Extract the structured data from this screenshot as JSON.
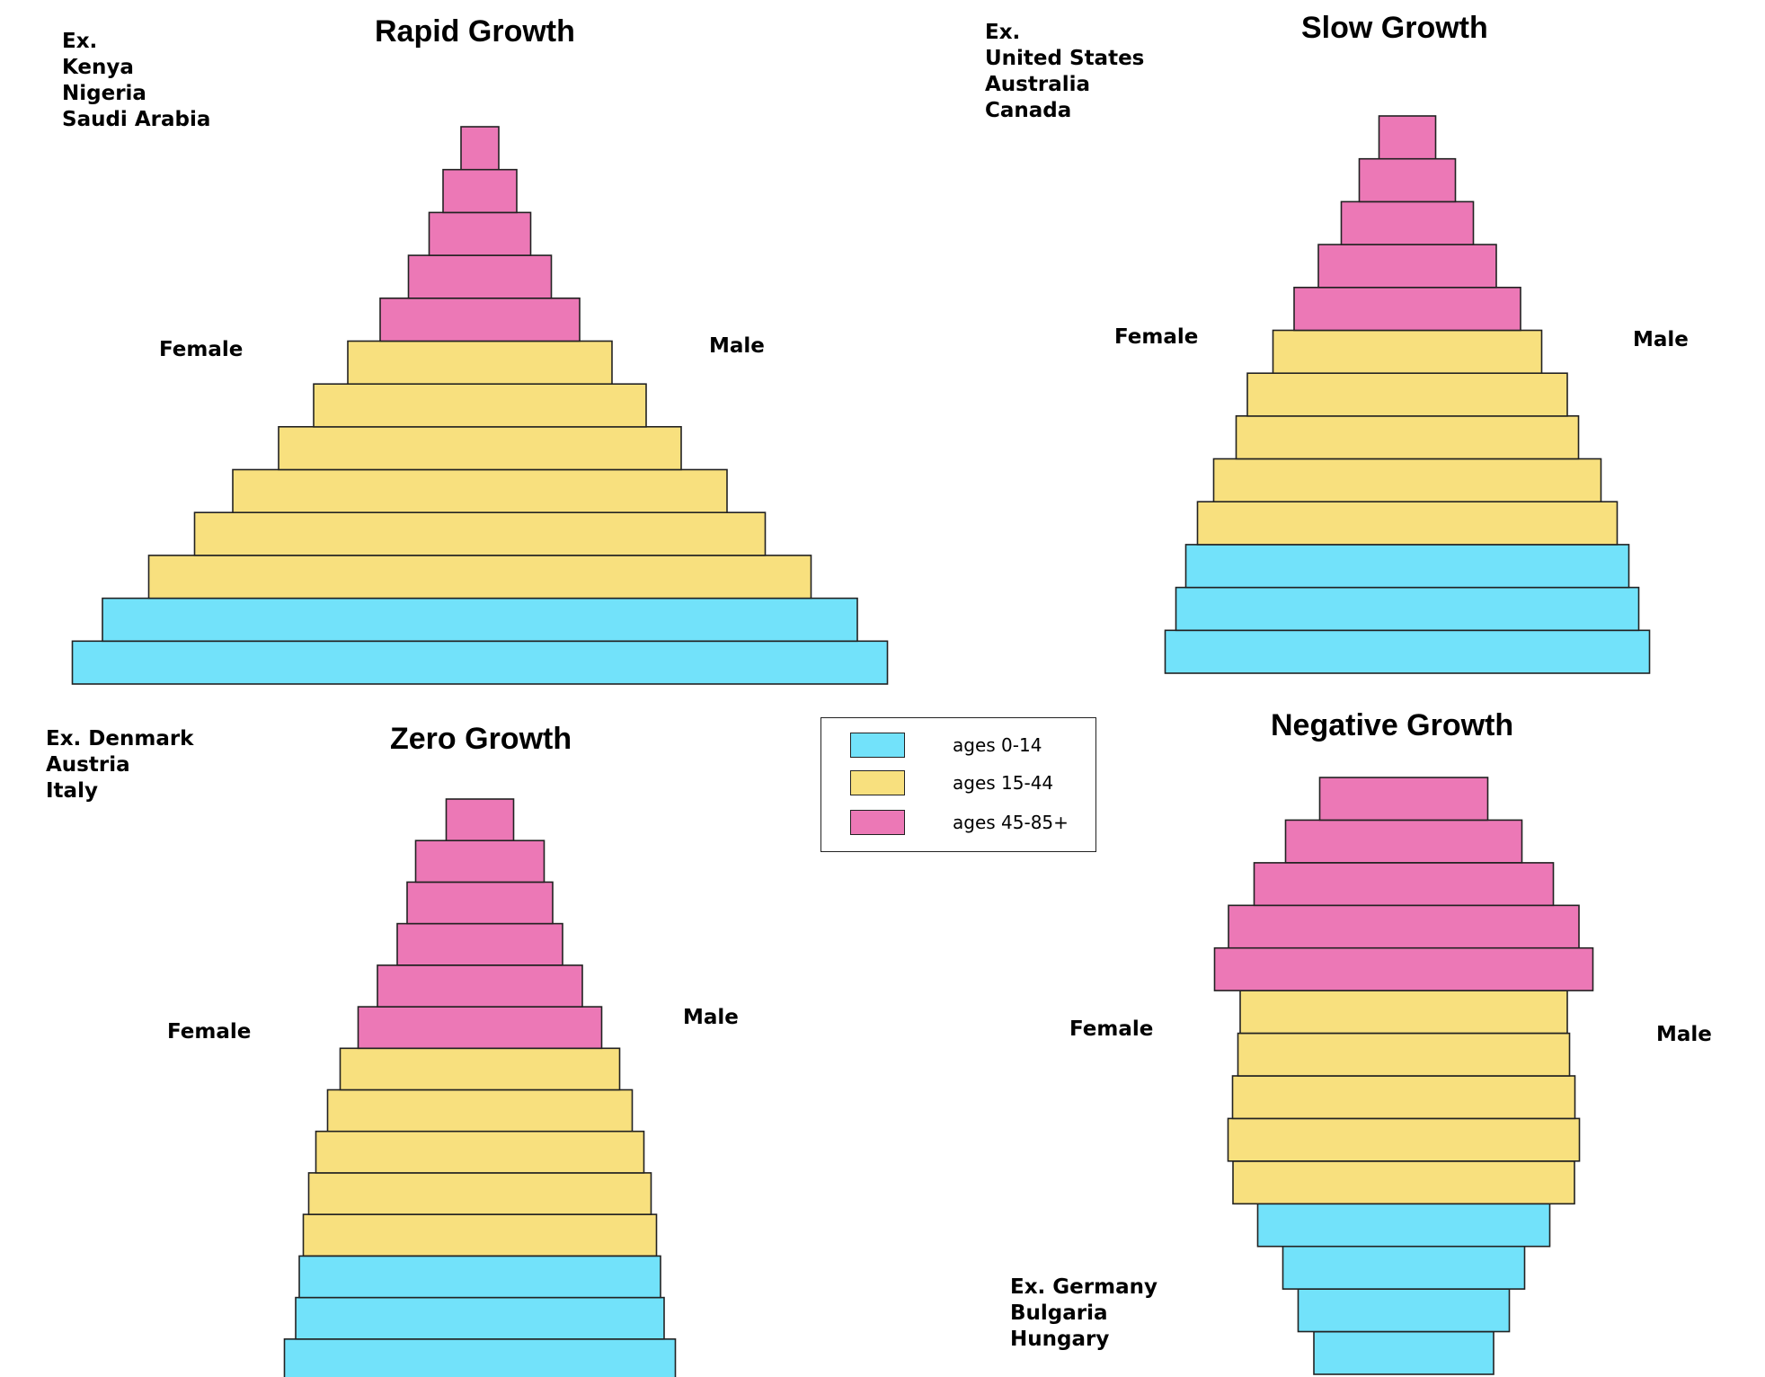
{
  "colors": {
    "ages_0_14": "#72e2fa",
    "ages_15_44": "#f8e07e",
    "ages_45_85": "#ec78b6",
    "outline": "#222222"
  },
  "legend": [
    {
      "label": "ages 0-14",
      "color_key": "ages_0_14"
    },
    {
      "label": "ages 15-44",
      "color_key": "ages_15_44"
    },
    {
      "label": "ages 45-85+",
      "color_key": "ages_45_85"
    }
  ],
  "panels": [
    {
      "title": "Rapid Growth",
      "examples": [
        "Ex.",
        "Kenya",
        "Nigeria",
        "Saudi Arabia"
      ],
      "female_label": "Female",
      "male_label": "Male",
      "bars_bottom_to_top": [
        {
          "group": "ages_0_14",
          "width": 907
        },
        {
          "group": "ages_0_14",
          "width": 840
        },
        {
          "group": "ages_15_44",
          "width": 737
        },
        {
          "group": "ages_15_44",
          "width": 635
        },
        {
          "group": "ages_15_44",
          "width": 550
        },
        {
          "group": "ages_15_44",
          "width": 448
        },
        {
          "group": "ages_15_44",
          "width": 370
        },
        {
          "group": "ages_15_44",
          "width": 294
        },
        {
          "group": "ages_45_85",
          "width": 222
        },
        {
          "group": "ages_45_85",
          "width": 159
        },
        {
          "group": "ages_45_85",
          "width": 113
        },
        {
          "group": "ages_45_85",
          "width": 82
        },
        {
          "group": "ages_45_85",
          "width": 42
        }
      ]
    },
    {
      "title": "Slow Growth",
      "examples": [
        "Ex.",
        "United States",
        "Australia",
        "Canada"
      ],
      "female_label": "Female",
      "male_label": "Male",
      "bars_bottom_to_top": [
        {
          "group": "ages_0_14",
          "width": 539
        },
        {
          "group": "ages_0_14",
          "width": 515
        },
        {
          "group": "ages_0_14",
          "width": 493
        },
        {
          "group": "ages_15_44",
          "width": 467
        },
        {
          "group": "ages_15_44",
          "width": 431
        },
        {
          "group": "ages_15_44",
          "width": 381
        },
        {
          "group": "ages_15_44",
          "width": 356
        },
        {
          "group": "ages_15_44",
          "width": 299
        },
        {
          "group": "ages_45_85",
          "width": 252
        },
        {
          "group": "ages_45_85",
          "width": 198
        },
        {
          "group": "ages_45_85",
          "width": 147
        },
        {
          "group": "ages_45_85",
          "width": 107
        },
        {
          "group": "ages_45_85",
          "width": 63
        }
      ]
    },
    {
      "title": "Zero Growth",
      "examples": [
        "Ex. Denmark",
        "Austria",
        "Italy"
      ],
      "female_label": "Female",
      "male_label": "Male",
      "bars_bottom_to_top": [
        {
          "group": "ages_0_14",
          "width": 435
        },
        {
          "group": "ages_0_14",
          "width": 410
        },
        {
          "group": "ages_0_14",
          "width": 402
        },
        {
          "group": "ages_15_44",
          "width": 393
        },
        {
          "group": "ages_15_44",
          "width": 381
        },
        {
          "group": "ages_15_44",
          "width": 365
        },
        {
          "group": "ages_15_44",
          "width": 339
        },
        {
          "group": "ages_15_44",
          "width": 311
        },
        {
          "group": "ages_45_85",
          "width": 271
        },
        {
          "group": "ages_45_85",
          "width": 228
        },
        {
          "group": "ages_45_85",
          "width": 184
        },
        {
          "group": "ages_45_85",
          "width": 162
        },
        {
          "group": "ages_45_85",
          "width": 143
        },
        {
          "group": "ages_45_85",
          "width": 75
        }
      ]
    },
    {
      "title": "Negative Growth",
      "examples": [
        "Ex. Germany",
        "Bulgaria",
        "Hungary"
      ],
      "female_label": "Female",
      "male_label": "Male",
      "bars_bottom_to_top": [
        {
          "group": "ages_0_14",
          "width": 200
        },
        {
          "group": "ages_0_14",
          "width": 235
        },
        {
          "group": "ages_0_14",
          "width": 269
        },
        {
          "group": "ages_0_14",
          "width": 325
        },
        {
          "group": "ages_15_44",
          "width": 380
        },
        {
          "group": "ages_15_44",
          "width": 391
        },
        {
          "group": "ages_15_44",
          "width": 381
        },
        {
          "group": "ages_15_44",
          "width": 369
        },
        {
          "group": "ages_15_44",
          "width": 364
        },
        {
          "group": "ages_45_85",
          "width": 421
        },
        {
          "group": "ages_45_85",
          "width": 390
        },
        {
          "group": "ages_45_85",
          "width": 333
        },
        {
          "group": "ages_45_85",
          "width": 263
        },
        {
          "group": "ages_45_85",
          "width": 187
        }
      ]
    }
  ]
}
